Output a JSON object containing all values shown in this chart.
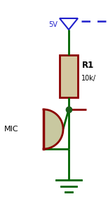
{
  "figsize": [
    1.54,
    2.89
  ],
  "dpi": 100,
  "bg_color": "#ffffff",
  "wire_color": "#006400",
  "component_color": "#8B0000",
  "resistor_fill": "#d4c8a0",
  "mic_fill": "#c8c8a0",
  "node_color": "#1a5e1a",
  "vcc_color": "#2020cc",
  "label_color": "#000000",
  "output_stub_color": "#8B0000",
  "vcc_label": "5V",
  "resistor_label": "R1",
  "resistor_value": "10k/",
  "mic_label": "MIC"
}
